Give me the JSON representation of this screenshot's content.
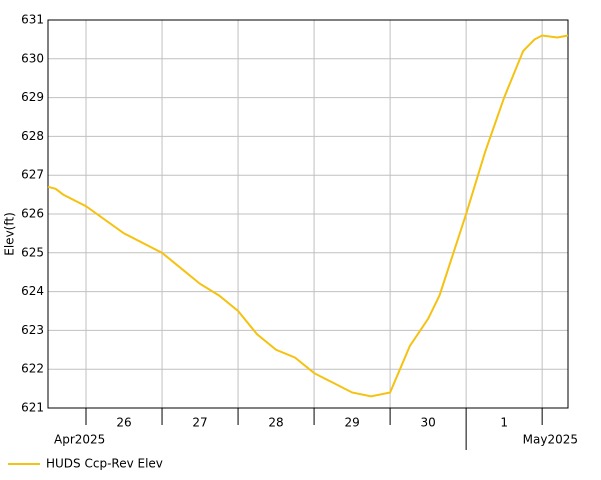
{
  "chart_data": {
    "type": "line",
    "y_label": "Elev(ft)",
    "x": [
      25.5,
      25.6,
      25.7,
      26.0,
      26.5,
      27.0,
      27.25,
      27.5,
      27.75,
      28.0,
      28.25,
      28.5,
      28.75,
      29.0,
      29.1,
      29.25,
      29.5,
      29.75,
      30.0,
      30.13,
      30.26,
      30.5,
      30.65,
      30.8,
      31.0,
      31.25,
      31.5,
      31.75,
      31.9,
      32.0,
      32.2,
      32.34
    ],
    "series": [
      {
        "name": "HUDS Ccp-Rev Elev",
        "color": "#f5c211",
        "values": [
          626.7,
          626.65,
          626.5,
          626.2,
          625.5,
          625.0,
          624.6,
          624.2,
          623.9,
          623.5,
          622.9,
          622.5,
          622.3,
          621.9,
          621.8,
          621.65,
          621.4,
          621.3,
          621.4,
          622.0,
          622.6,
          623.3,
          623.9,
          624.8,
          626.0,
          627.6,
          629.0,
          630.2,
          630.5,
          630.6,
          630.55,
          630.6
        ]
      }
    ],
    "xlim": [
      25.5,
      32.34
    ],
    "xticks": [
      26,
      27,
      28,
      29,
      30,
      31,
      32
    ],
    "day_labels": [
      {
        "value": 26.5,
        "label": "26"
      },
      {
        "value": 27.5,
        "label": "27"
      },
      {
        "value": 28.5,
        "label": "28"
      },
      {
        "value": 29.5,
        "label": "29"
      },
      {
        "value": 30.5,
        "label": "30"
      },
      {
        "value": 31.5,
        "label": "1"
      }
    ],
    "month_labels": [
      "Apr2025",
      "May2025"
    ],
    "month_boundary": 31,
    "ylim": [
      621,
      631
    ],
    "yticks": [
      621,
      622,
      623,
      624,
      625,
      626,
      627,
      628,
      629,
      630,
      631
    ],
    "grid": true
  }
}
